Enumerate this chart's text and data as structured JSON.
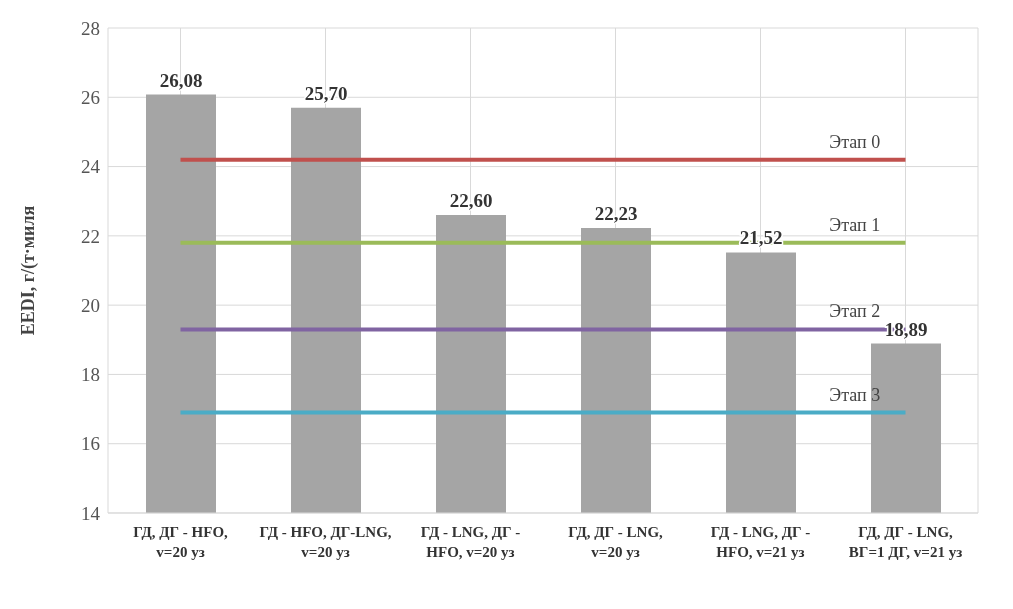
{
  "chart_data": {
    "type": "bar",
    "ylabel": "EEDI,  г/(т·миля",
    "categories": [
      "ГД, ДГ - HFO, v=20 уз",
      "ГД - HFO, ДГ-LNG, v=20 уз",
      "ГД - LNG, ДГ - HFO, v=20 уз",
      "ГД, ДГ - LNG, v=20 уз",
      "ГД - LNG, ДГ - HFO, v=21 уз",
      "ГД, ДГ - LNG, ВГ=1 ДГ, v=21 уз"
    ],
    "values": [
      26.08,
      25.7,
      22.6,
      22.23,
      21.52,
      18.89
    ],
    "value_labels": [
      "26,08",
      "25,70",
      "22,60",
      "22,23",
      "21,52",
      "18,89"
    ],
    "color": "#a5a5a5",
    "ylim": [
      14,
      28
    ],
    "yticks": [
      14,
      16,
      18,
      20,
      22,
      24,
      26,
      28
    ],
    "grid": true,
    "ref_lines": [
      {
        "axis": "y",
        "value": 24.2,
        "label": "Этап 0",
        "color": "#c0504d"
      },
      {
        "axis": "y",
        "value": 21.8,
        "label": "Этап 1",
        "color": "#9bbb59"
      },
      {
        "axis": "y",
        "value": 19.3,
        "label": "Этап 2",
        "color": "#8064a2"
      },
      {
        "axis": "y",
        "value": 16.9,
        "label": "Этап 3",
        "color": "#4bacc6"
      }
    ]
  }
}
